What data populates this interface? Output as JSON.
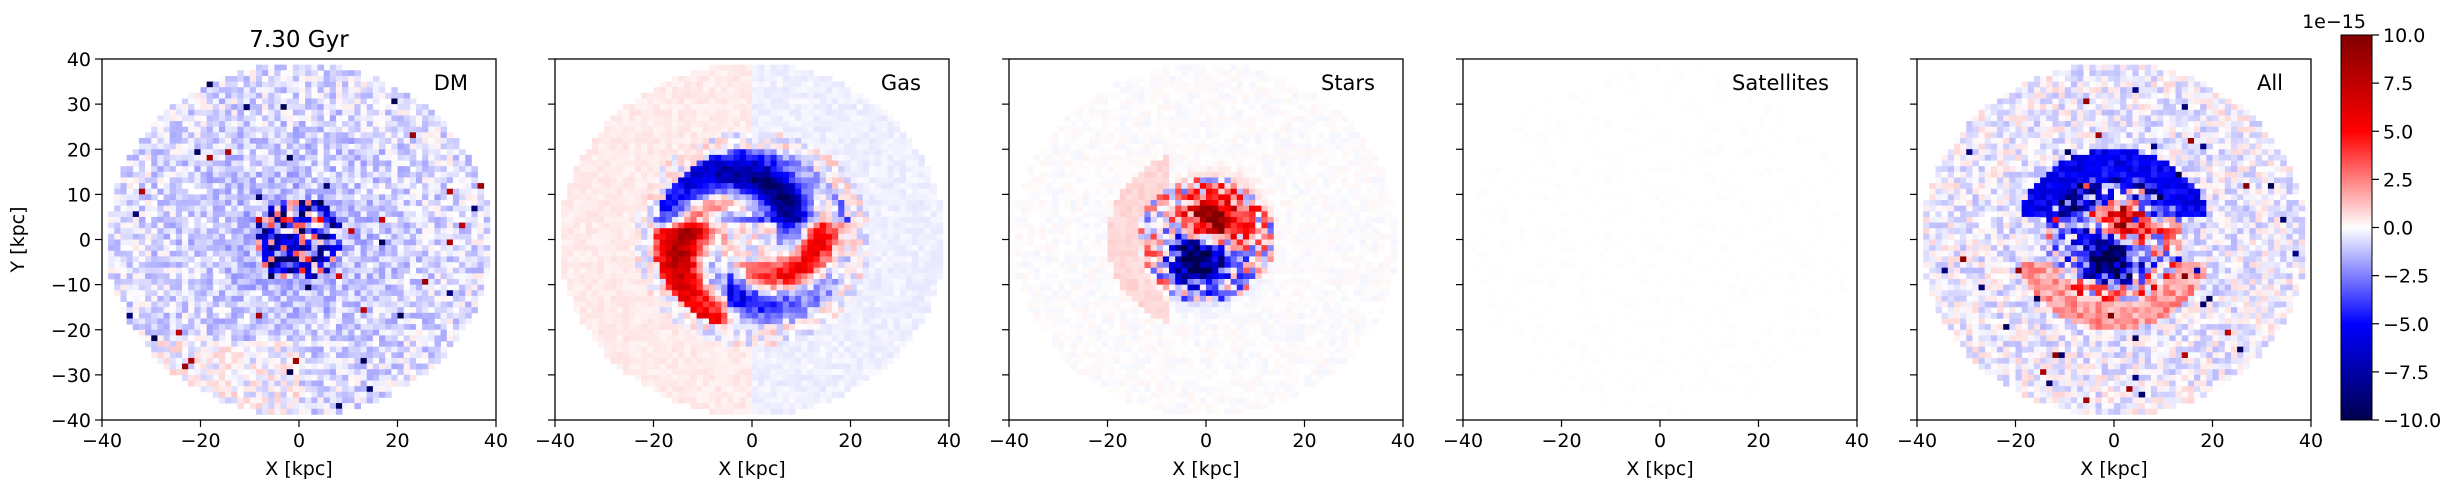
{
  "figure": {
    "title": "7.30 Gyr"
  },
  "chart_data": [
    {
      "type": "heatmap",
      "panel_label": "DM",
      "xlabel": "X [kpc]",
      "ylabel": "Y [kpc]",
      "xlim": [
        -40,
        40
      ],
      "ylim": [
        -40,
        40
      ],
      "xticks": [
        -40,
        -20,
        0,
        20,
        40
      ],
      "yticks": [
        -40,
        -30,
        -20,
        -10,
        0,
        10,
        20,
        30,
        40
      ],
      "show_yticklabels": true,
      "pattern": "noisy-blue-center",
      "seed": 11
    },
    {
      "type": "heatmap",
      "panel_label": "Gas",
      "xlabel": "X [kpc]",
      "ylabel": "",
      "xlim": [
        -40,
        40
      ],
      "ylim": [
        -40,
        40
      ],
      "xticks": [
        -40,
        -20,
        0,
        20,
        40
      ],
      "yticks": [
        -40,
        -30,
        -20,
        -10,
        0,
        10,
        20,
        30,
        40
      ],
      "show_yticklabels": false,
      "pattern": "spiral-arms",
      "seed": 23
    },
    {
      "type": "heatmap",
      "panel_label": "Stars",
      "xlabel": "X [kpc]",
      "ylabel": "",
      "xlim": [
        -40,
        40
      ],
      "ylim": [
        -40,
        40
      ],
      "xticks": [
        -40,
        -20,
        0,
        20,
        40
      ],
      "yticks": [
        -40,
        -30,
        -20,
        -10,
        0,
        10,
        20,
        30,
        40
      ],
      "show_yticklabels": false,
      "pattern": "dipole-core",
      "seed": 37
    },
    {
      "type": "heatmap",
      "panel_label": "Satellites",
      "xlabel": "X [kpc]",
      "ylabel": "",
      "xlim": [
        -40,
        40
      ],
      "ylim": [
        -40,
        40
      ],
      "xticks": [
        -40,
        -20,
        0,
        20,
        40
      ],
      "yticks": [
        -40,
        -30,
        -20,
        -10,
        0,
        10,
        20,
        30,
        40
      ],
      "show_yticklabels": false,
      "pattern": "near-zero",
      "seed": 41
    },
    {
      "type": "heatmap",
      "panel_label": "All",
      "xlabel": "X [kpc]",
      "ylabel": "",
      "xlim": [
        -40,
        40
      ],
      "ylim": [
        -40,
        40
      ],
      "xticks": [
        -40,
        -20,
        0,
        20,
        40
      ],
      "yticks": [
        -40,
        -30,
        -20,
        -10,
        0,
        10,
        20,
        30,
        40
      ],
      "show_yticklabels": false,
      "pattern": "combined",
      "seed": 53
    }
  ],
  "colorbar": {
    "colormap": "seismic",
    "vmin": -10.0,
    "vmax": 10.0,
    "offset_label": "1e−15",
    "ticks": [
      -10.0,
      -7.5,
      -5.0,
      -2.5,
      0.0,
      2.5,
      5.0,
      7.5,
      10.0
    ],
    "tick_labels": [
      "−10.0",
      "−7.5",
      "−5.0",
      "−2.5",
      "0.0",
      "2.5",
      "5.0",
      "7.5",
      "10.0"
    ]
  }
}
